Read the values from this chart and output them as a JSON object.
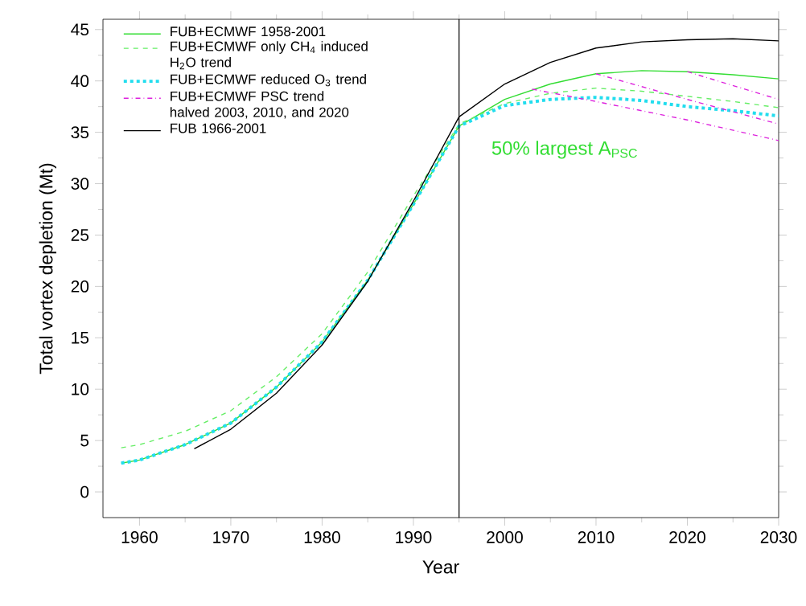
{
  "chart_data": {
    "type": "line",
    "xlabel": "Year",
    "ylabel": "Total vortex depletion (Mt)",
    "xlim": [
      1956,
      2030
    ],
    "xticks": [
      1960,
      1970,
      1980,
      1990,
      2000,
      2010,
      2020,
      2030
    ],
    "ylim": [
      -2.5,
      46
    ],
    "yticks": [
      0,
      5,
      10,
      15,
      20,
      25,
      30,
      35,
      40,
      45
    ],
    "legend": "top left",
    "annotations": [
      "50% largest A$_{PSC}$"
    ],
    "ref_lines": [
      {
        "axis": "x",
        "value": 1995,
        "color": "#000000"
      }
    ],
    "series": [
      {
        "name": "FUB+ECMWF 1958-2001",
        "color": "#33dd33",
        "line_style": "solid",
        "x": [
          1958,
          1960,
          1965,
          1970,
          1975,
          1980,
          1985,
          1990,
          1995,
          2000,
          2005,
          2010,
          2015,
          2020,
          2025,
          2030
        ],
        "values": [
          2.8,
          3.1,
          4.6,
          6.7,
          10.2,
          14.6,
          20.6,
          28.0,
          35.6,
          38.2,
          39.7,
          40.7,
          41.0,
          40.9,
          40.6,
          40.2
        ]
      },
      {
        "name": "FUB+ECMWF only CH$_{4}$ induced H$_{2}$O trend",
        "color": "#66ee66",
        "line_style": "dashed",
        "x": [
          1958,
          1960,
          1965,
          1970,
          1975,
          1980,
          1985,
          1990,
          1995,
          2000,
          2005,
          2010,
          2015,
          2020,
          2025,
          2030
        ],
        "values": [
          4.3,
          4.6,
          5.9,
          7.9,
          11.2,
          15.4,
          21.4,
          28.8,
          35.8,
          37.8,
          38.8,
          39.3,
          39.0,
          38.5,
          38.0,
          37.4
        ]
      },
      {
        "name": "FUB+ECMWF reduced O$_{3}$ trend",
        "color": "#22ddee",
        "line_style": "dotted",
        "x": [
          1958,
          1960,
          1965,
          1970,
          1975,
          1980,
          1985,
          1990,
          1995,
          2000,
          2005,
          2010,
          2015,
          2020,
          2025,
          2030
        ],
        "values": [
          2.8,
          3.1,
          4.6,
          6.7,
          10.2,
          14.6,
          20.6,
          28.0,
          35.6,
          37.6,
          38.2,
          38.4,
          38.1,
          37.5,
          37.1,
          36.6
        ]
      },
      {
        "name": "FUB+ECMWF PSC trend halved 2003, 2010, and 2020",
        "color": "#dd22dd",
        "line_style": "dashdot",
        "x": [
          2003,
          2010,
          2020,
          2030
        ],
        "values": [
          39.2,
          38.0,
          36.2,
          34.2
        ]
      },
      {
        "color": "#dd22dd",
        "line_style": "dashdot",
        "x": [
          2010,
          2020,
          2030
        ],
        "values": [
          40.7,
          38.2,
          35.8
        ]
      },
      {
        "color": "#dd22dd",
        "line_style": "dashdot",
        "x": [
          2020,
          2030
        ],
        "values": [
          40.9,
          38.2
        ]
      },
      {
        "name": "FUB 1966-2001",
        "color": "#000000",
        "line_style": "solid",
        "x": [
          1966,
          1970,
          1975,
          1980,
          1985,
          1990,
          1995,
          2000,
          2005,
          2010,
          2015,
          2020,
          2025,
          2030
        ],
        "values": [
          4.2,
          6.1,
          9.6,
          14.3,
          20.5,
          28.3,
          36.5,
          39.7,
          41.8,
          43.2,
          43.8,
          44.0,
          44.1,
          43.9
        ]
      }
    ]
  }
}
